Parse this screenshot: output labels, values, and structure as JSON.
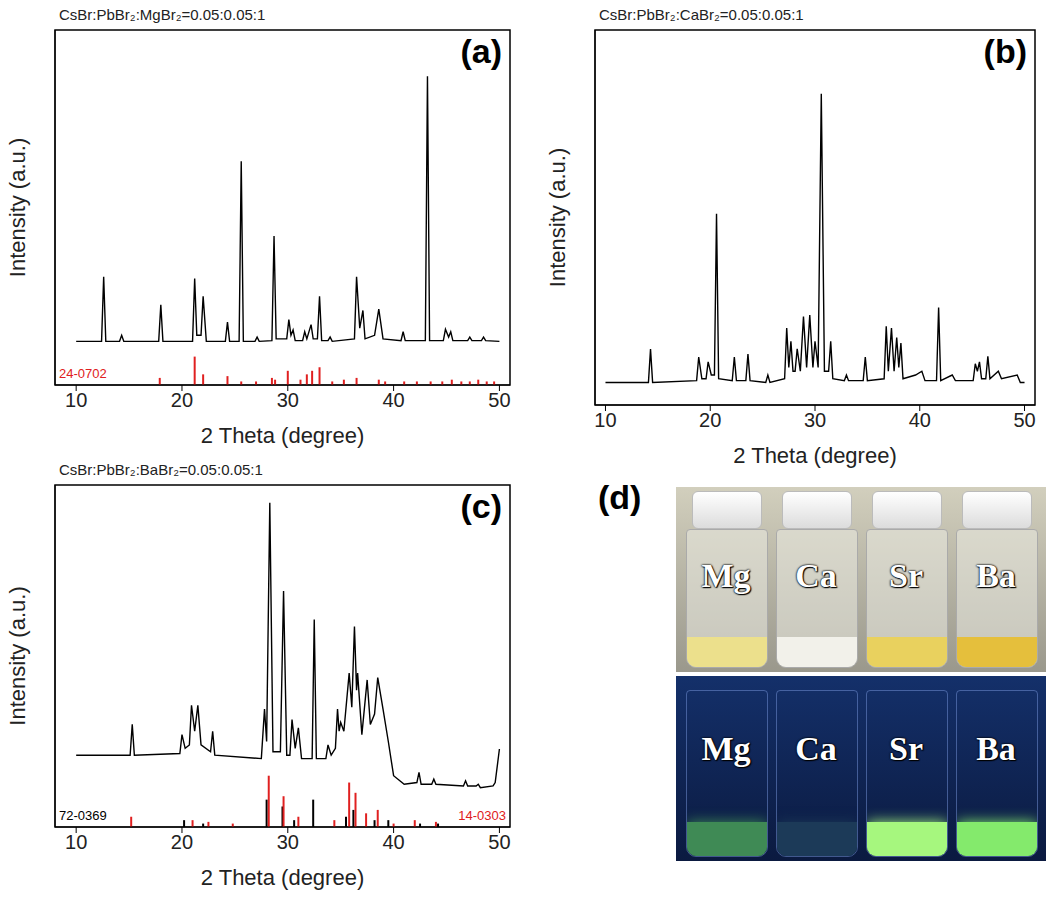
{
  "chart_data": [
    {
      "type": "line",
      "panel": "(a)",
      "title": "CsBr:PbBr₂:MgBr₂=0.05:0.05:1",
      "x_label": "2 Theta (degree)",
      "y_label": "Intensity (a.u.)",
      "xlim": [
        8,
        51
      ],
      "xticks": [
        10,
        20,
        30,
        40,
        50
      ],
      "ylim": [
        0,
        100
      ],
      "tick_labels": "x",
      "color": "#000000",
      "x": [
        10,
        12.4,
        12.6,
        12.8,
        14.1,
        14.3,
        14.5,
        17.8,
        18.0,
        18.2,
        21.0,
        21.2,
        21.4,
        21.8,
        22.0,
        22.3,
        24.1,
        24.3,
        24.5,
        25.4,
        25.6,
        25.8,
        26.9,
        27.1,
        27.3,
        28.5,
        28.7,
        28.9,
        29.9,
        30.1,
        30.3,
        30.5,
        30.7,
        31.4,
        31.6,
        31.8,
        32.2,
        32.4,
        32.8,
        33.0,
        33.2,
        33.8,
        34.0,
        34.2,
        36.3,
        36.5,
        36.8,
        37.1,
        37.3,
        38.2,
        38.6,
        39.0,
        40.7,
        40.9,
        41.1,
        43.0,
        43.2,
        43.4,
        44.7,
        44.9,
        45.2,
        45.4,
        45.6,
        47.0,
        47.2,
        47.4,
        48.3,
        48.5,
        48.7,
        50
      ],
      "values": [
        12.3,
        12.3,
        30.5,
        12.3,
        12.3,
        14,
        12.3,
        12.3,
        22.6,
        12.3,
        12.3,
        30,
        14,
        14,
        25,
        12.3,
        12.3,
        17.7,
        12.3,
        12.3,
        63,
        12.3,
        12.3,
        13.5,
        12.3,
        12.5,
        42,
        13,
        13,
        18.4,
        14,
        15.5,
        12.5,
        12.5,
        15,
        13,
        17,
        13,
        13,
        25,
        12.5,
        12.5,
        13.5,
        12.3,
        13,
        30.5,
        16,
        21,
        13,
        14,
        21.4,
        13,
        12.5,
        15,
        12.5,
        12.5,
        87,
        12.5,
        12.5,
        15.7,
        13.5,
        15,
        12.5,
        12.5,
        13.5,
        12.5,
        12.5,
        13.5,
        12.5,
        12.3
      ],
      "references": [
        {
          "label": "24-0702",
          "type": "stick",
          "color": "#e02020",
          "x": [
            17.9,
            21.2,
            22.0,
            24.3,
            25.6,
            27.0,
            28.5,
            28.8,
            30.0,
            31.2,
            31.8,
            32.3,
            33.0,
            34.2,
            35.3,
            36.5,
            38.6,
            39.2,
            41.0,
            42.2,
            43.5,
            44.6,
            45.5,
            46.4,
            47.2,
            48.0,
            48.8,
            49.5
          ],
          "values": [
            2,
            8,
            3,
            2.5,
            1,
            1,
            2,
            1.5,
            4,
            1.5,
            3,
            4,
            5,
            1,
            1.5,
            2,
            1.5,
            1,
            1,
            1,
            1,
            1,
            1.5,
            1,
            1,
            1.5,
            1,
            1
          ]
        }
      ]
    },
    {
      "type": "line",
      "panel": "(b)",
      "title": "CsBr:PbBr₂:CaBr₂=0.05:0.05:1",
      "x_label": "2 Theta (degree)",
      "y_label": "Intensity (a.u.)",
      "xlim": [
        9,
        51
      ],
      "xticks": [
        10,
        20,
        30,
        40,
        50
      ],
      "ylim": [
        0,
        100
      ],
      "tick_labels": "x",
      "color": "#000000",
      "x": [
        10,
        14.1,
        14.3,
        14.5,
        18.7,
        18.9,
        19.2,
        19.6,
        19.8,
        20.1,
        20.4,
        20.6,
        20.8,
        22.1,
        22.3,
        22.5,
        23.4,
        23.6,
        23.8,
        25.3,
        25.5,
        25.7,
        27.1,
        27.3,
        27.5,
        27.7,
        27.9,
        28.1,
        28.3,
        28.6,
        28.9,
        29.2,
        29.5,
        29.8,
        30.0,
        30.3,
        30.6,
        30.9,
        31.3,
        31.5,
        31.7,
        32.8,
        33.0,
        33.2,
        34.6,
        34.8,
        35.0,
        36.6,
        36.8,
        37.0,
        37.3,
        37.55,
        37.8,
        38.0,
        38.2,
        38.4,
        39.6,
        40.2,
        40.5,
        41.6,
        41.8,
        42.0,
        43.1,
        43.4,
        45.1,
        45.3,
        45.5,
        45.7,
        45.9,
        46.3,
        46.5,
        46.7,
        47.5,
        47.8,
        49.3,
        49.6,
        50
      ],
      "values": [
        6,
        6,
        14.9,
        6,
        6.5,
        12.8,
        7,
        7,
        11.5,
        8,
        8,
        51,
        7,
        6.5,
        12.8,
        6.5,
        6.5,
        13.6,
        6.5,
        6,
        8,
        6,
        7,
        20.5,
        10,
        17,
        9,
        9,
        15,
        9,
        23.6,
        10,
        24,
        10,
        17,
        10,
        83,
        9,
        9,
        17,
        7,
        6.5,
        8,
        6.5,
        6.5,
        12.8,
        6.5,
        7,
        21,
        9,
        20.5,
        9,
        18,
        10,
        16.5,
        7,
        8,
        9,
        6.5,
        6.5,
        26,
        6.5,
        8,
        6.5,
        6.5,
        11,
        9,
        11.5,
        7,
        7,
        13,
        7,
        9,
        7,
        8,
        6,
        6
      ]
    },
    {
      "type": "line",
      "panel": "(c)",
      "title": "CsBr:PbBr₂:BaBr₂=0.05:0.05:1",
      "x_label": "2 Theta (degree)",
      "y_label": "Intensity (a.u.)",
      "xlim": [
        8,
        51
      ],
      "xticks": [
        10,
        20,
        30,
        40,
        50
      ],
      "ylim": [
        0,
        100
      ],
      "tick_labels": "x",
      "color": "#000000",
      "x": [
        10,
        15.1,
        15.3,
        15.5,
        19.8,
        20.0,
        20.3,
        20.7,
        20.9,
        21.2,
        21.5,
        21.8,
        22.7,
        22.9,
        23.1,
        27.5,
        27.8,
        28.0,
        28.3,
        28.6,
        29.3,
        29.6,
        29.9,
        30.2,
        30.4,
        30.7,
        31.0,
        31.3,
        32.3,
        32.5,
        32.7,
        33.6,
        33.8,
        34.1,
        34.5,
        34.7,
        34.85,
        35.0,
        35.3,
        35.8,
        36.05,
        36.3,
        36.5,
        36.6,
        37.0,
        37.5,
        37.8,
        38.2,
        38.5,
        39.0,
        39.5,
        40.0,
        41.0,
        42.2,
        42.4,
        42.6,
        43.6,
        43.8,
        44.0,
        46.6,
        46.8,
        47.0,
        47.8,
        48.0,
        48.2,
        49.4,
        49.6,
        50
      ],
      "values": [
        21,
        21,
        30,
        21,
        21.5,
        27,
        23,
        24,
        35.6,
        28,
        35.6,
        24,
        22,
        28,
        21,
        20,
        34.5,
        25,
        94.8,
        22,
        22,
        69,
        21,
        21,
        31.4,
        23,
        29,
        20,
        20,
        60.7,
        20,
        20,
        24,
        21,
        23,
        34.5,
        28,
        30.6,
        28,
        45,
        35,
        58.6,
        40,
        45,
        27,
        43,
        30,
        33,
        43.7,
        34.5,
        25,
        15,
        12.5,
        13,
        16,
        12.5,
        12.5,
        14,
        12.5,
        12,
        13.5,
        12,
        12,
        12.5,
        11.5,
        12,
        13,
        22.8
      ],
      "references": [
        {
          "label": "72-0369",
          "type": "stick",
          "color": "#000000",
          "x": [
            20.2,
            22.0,
            28.0,
            29.5,
            30.6,
            32.4,
            35.5,
            36.2,
            38.2,
            39.5,
            42.5,
            44.2
          ],
          "values": [
            2,
            1,
            8,
            6,
            2,
            8,
            3,
            5,
            2,
            2,
            1,
            1
          ]
        },
        {
          "label": "14-0303",
          "type": "stick",
          "color": "#e02020",
          "x": [
            15.2,
            21.0,
            22.5,
            24.8,
            28.2,
            29.6,
            31.0,
            34.4,
            35.8,
            36.4,
            37.4,
            38.5,
            40.0,
            42.0,
            44.0
          ],
          "values": [
            3,
            2,
            1.5,
            1,
            15,
            9,
            3,
            2,
            13,
            10,
            4,
            5,
            1,
            2,
            1.5
          ]
        }
      ]
    }
  ],
  "photo": {
    "panel": "(d)",
    "samples": [
      "Mg",
      "Ca",
      "Sr",
      "Ba"
    ]
  }
}
